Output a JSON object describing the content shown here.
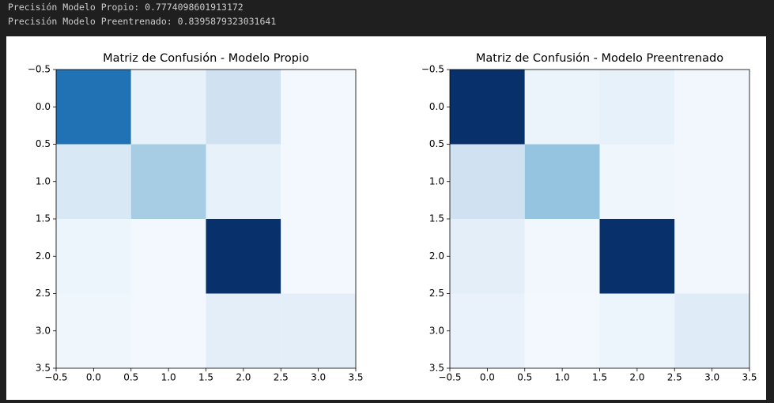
{
  "output_lines": [
    "Precisión Modelo Propio: 0.7774098601913172",
    "Precisión Modelo Preentrenado: 0.8395879323031641"
  ],
  "chart_data": [
    {
      "type": "heatmap",
      "title": "Matriz de Confusión - Modelo Propio",
      "colormap": "Blues",
      "values": [
        [
          0.75,
          0.08,
          0.2,
          0.02
        ],
        [
          0.15,
          0.35,
          0.08,
          0.02
        ],
        [
          0.05,
          0.02,
          1.0,
          0.02
        ],
        [
          0.04,
          0.02,
          0.1,
          0.1
        ]
      ],
      "xlim": [
        -0.5,
        3.5
      ],
      "ylim": [
        3.5,
        -0.5
      ],
      "xticks": [
        {
          "value": -0.5,
          "label": "−0.5"
        },
        {
          "value": 0,
          "label": "0.0"
        },
        0.5,
        {
          "value": 1,
          "label": "1.0"
        },
        1.5,
        {
          "value": 2,
          "label": "2.0"
        },
        2.5,
        {
          "value": 3,
          "label": "3.0"
        },
        3.5
      ],
      "yticks": [
        {
          "value": -0.5,
          "label": "−0.5"
        },
        {
          "value": 0,
          "label": "0.0"
        },
        0.5,
        {
          "value": 1,
          "label": "1.0"
        },
        1.5,
        {
          "value": 2,
          "label": "2.0"
        },
        2.5,
        {
          "value": 3,
          "label": "3.0"
        },
        3.5
      ]
    },
    {
      "type": "heatmap",
      "title": "Matriz de Confusión - Modelo Preentrenado",
      "colormap": "Blues",
      "values": [
        [
          1.0,
          0.06,
          0.08,
          0.03
        ],
        [
          0.2,
          0.4,
          0.04,
          0.03
        ],
        [
          0.1,
          0.03,
          1.0,
          0.03
        ],
        [
          0.07,
          0.02,
          0.05,
          0.12
        ]
      ],
      "xlim": [
        -0.5,
        3.5
      ],
      "ylim": [
        3.5,
        -0.5
      ],
      "xticks": [
        {
          "value": -0.5,
          "label": "−0.5"
        },
        {
          "value": 0,
          "label": "0.0"
        },
        0.5,
        {
          "value": 1,
          "label": "1.0"
        },
        1.5,
        {
          "value": 2,
          "label": "2.0"
        },
        2.5,
        {
          "value": 3,
          "label": "3.0"
        },
        3.5
      ],
      "yticks": [
        {
          "value": -0.5,
          "label": "−0.5"
        },
        {
          "value": 0,
          "label": "0.0"
        },
        0.5,
        {
          "value": 1,
          "label": "1.0"
        },
        1.5,
        {
          "value": 2,
          "label": "2.0"
        },
        2.5,
        {
          "value": 3,
          "label": "3.0"
        },
        3.5
      ]
    }
  ]
}
